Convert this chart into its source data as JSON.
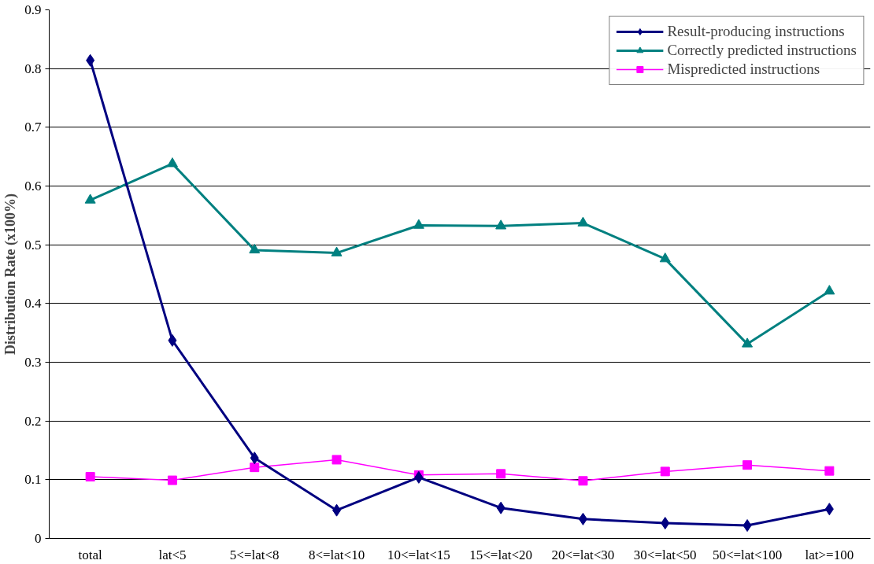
{
  "chart_data": {
    "type": "line",
    "ylabel": "Distribution Rate (x100%)",
    "categories": [
      "total",
      "lat<5",
      "5<=lat<8",
      "8<=lat<10",
      "10<=lat<15",
      "15<=lat<20",
      "20<=lat<30",
      "30<=lat<50",
      "50<=lat<100",
      "lat>=100"
    ],
    "series": [
      {
        "name": "Result-producing instructions",
        "color": "#000080",
        "marker": "diamond",
        "values": [
          0.814,
          0.337,
          0.137,
          0.048,
          0.104,
          0.052,
          0.033,
          0.026,
          0.022,
          0.05
        ]
      },
      {
        "name": "Correctly predicted instructions",
        "color": "#008080",
        "marker": "triangle",
        "values": [
          0.576,
          0.638,
          0.491,
          0.486,
          0.533,
          0.532,
          0.537,
          0.476,
          0.331,
          0.421
        ]
      },
      {
        "name": "Mispredicted instructions",
        "color": "#ff00ff",
        "marker": "square",
        "values": [
          0.105,
          0.099,
          0.121,
          0.134,
          0.108,
          0.11,
          0.098,
          0.114,
          0.125,
          0.115
        ]
      }
    ],
    "ylim": [
      0,
      0.9
    ],
    "yticks": [
      0,
      0.1,
      0.2,
      0.3,
      0.4,
      0.5,
      0.6,
      0.7,
      0.8,
      0.9
    ],
    "grid": "y",
    "legend": "top right",
    "line_style": "solid"
  }
}
